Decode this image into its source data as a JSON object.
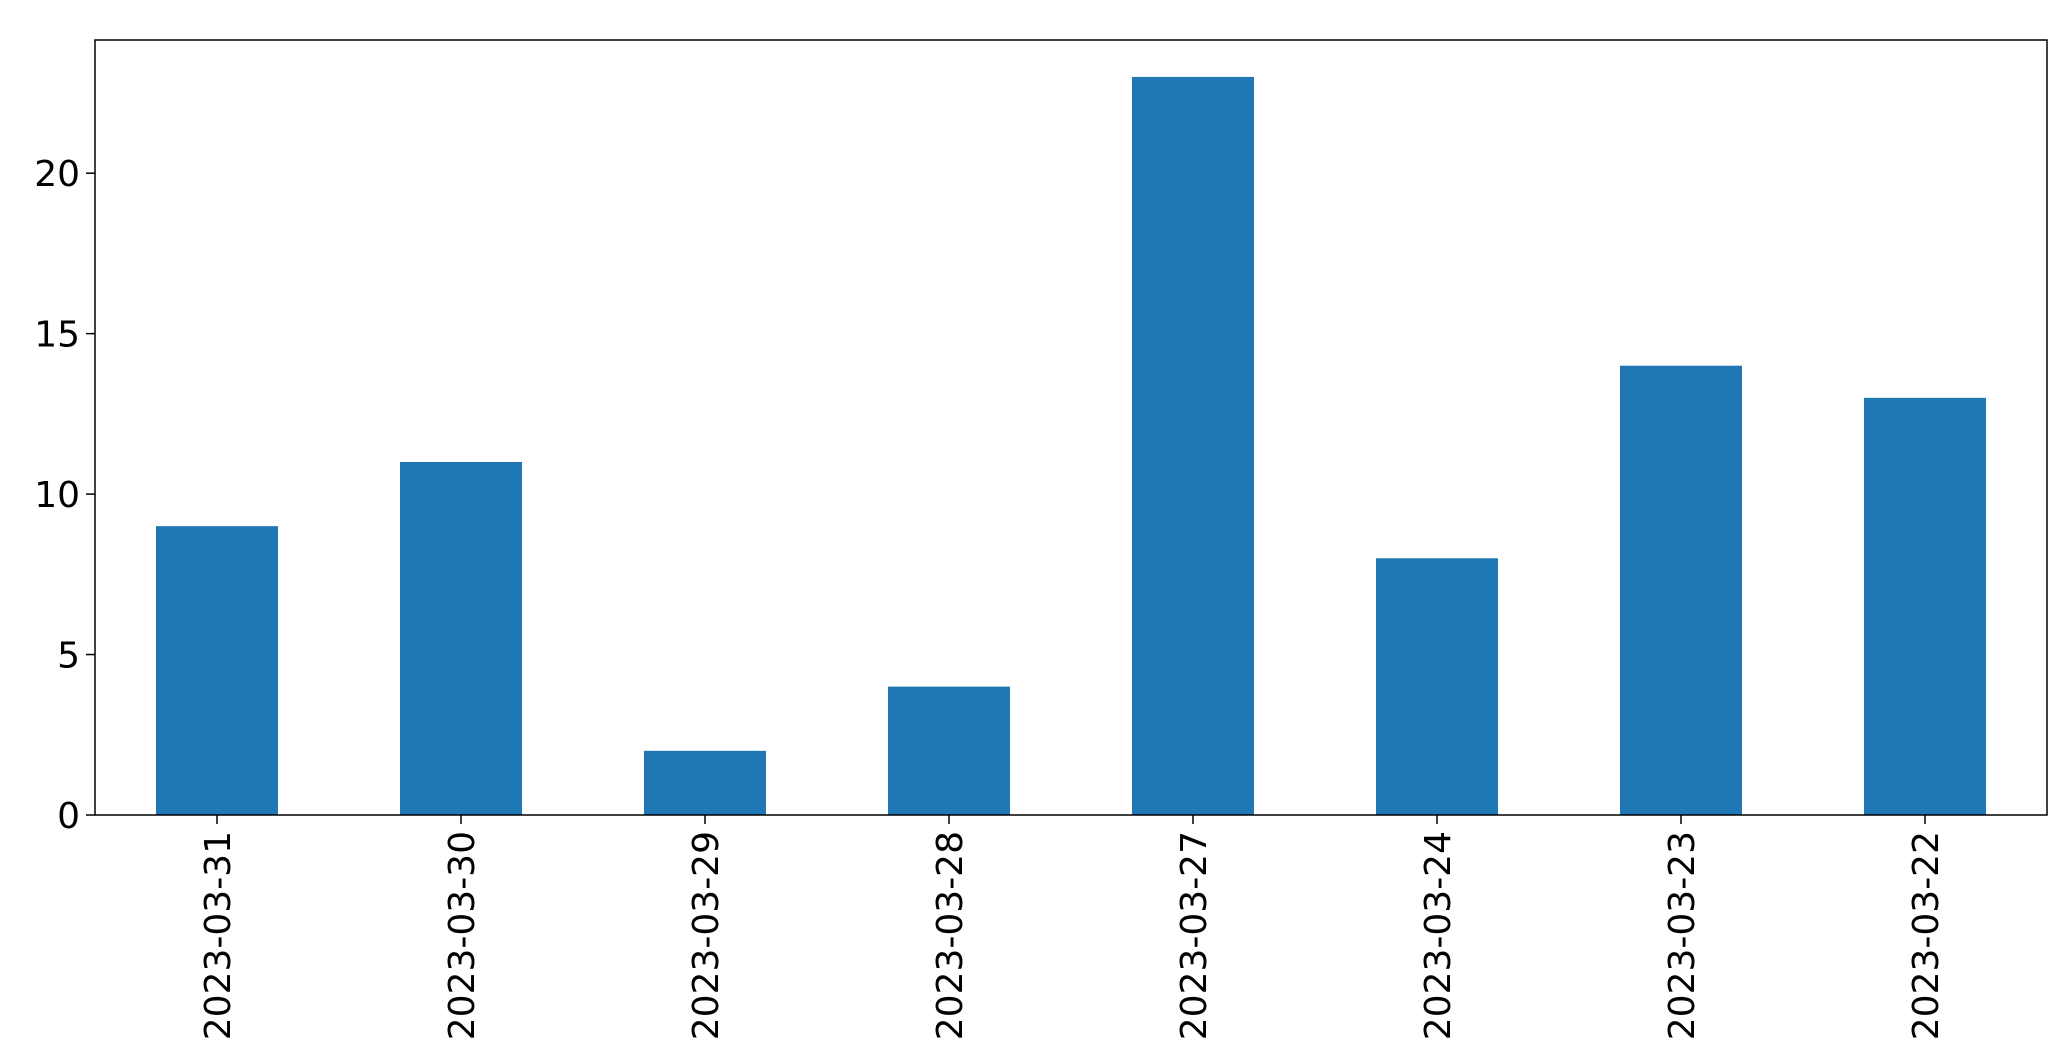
{
  "chart_data": {
    "type": "bar",
    "categories": [
      "2023-03-31",
      "2023-03-30",
      "2023-03-29",
      "2023-03-28",
      "2023-03-27",
      "2023-03-24",
      "2023-03-23",
      "2023-03-22"
    ],
    "values": [
      9,
      11,
      2,
      4,
      23,
      8,
      14,
      13
    ],
    "title": "",
    "xlabel": "",
    "ylabel": "",
    "ylim": [
      0,
      24.15
    ],
    "yticks": [
      0,
      5,
      10,
      15,
      20
    ],
    "grid": false,
    "legend": "none",
    "bar_color": "#1f77b4"
  }
}
